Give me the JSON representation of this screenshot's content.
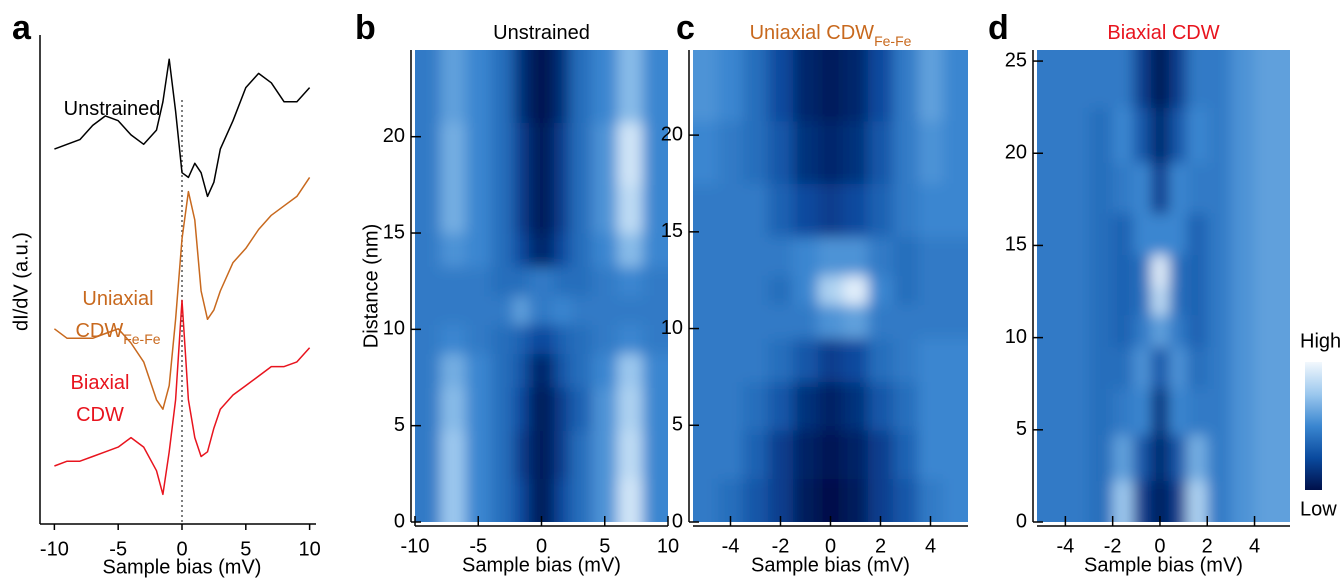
{
  "chart_data": [
    {
      "type": "line",
      "panel": "a",
      "xlabel": "Sample bias (mV)",
      "ylabel": "dI/dV (a.u.)",
      "xlim": [
        -10.5,
        10.5
      ],
      "xticks": [
        -10,
        -5,
        0,
        5,
        10
      ],
      "ylim": [
        0,
        10
      ],
      "ref_line_x": 0,
      "x": [
        -10,
        -9,
        -8,
        -7,
        -6,
        -5,
        -4,
        -3,
        -2,
        -1.5,
        -1,
        -0.5,
        0,
        0.5,
        1,
        1.5,
        2,
        2.5,
        3,
        4,
        5,
        6,
        7,
        8,
        9,
        10
      ],
      "series": [
        {
          "label_lines": [
            "Unstrained"
          ],
          "color": "#000000",
          "values": [
            7.8,
            7.9,
            8.0,
            8.3,
            8.5,
            8.4,
            8.1,
            7.9,
            8.2,
            8.8,
            9.7,
            8.6,
            7.3,
            7.2,
            7.5,
            7.3,
            6.8,
            7.1,
            7.8,
            8.4,
            9.1,
            9.4,
            9.2,
            8.8,
            8.8,
            9.1
          ]
        },
        {
          "label_lines": [
            "Uniaxial",
            "CDW"
          ],
          "label_sub": "Fe-Fe",
          "color": "#c8691e",
          "values": [
            4.0,
            3.8,
            3.8,
            3.8,
            3.9,
            4.0,
            3.7,
            3.3,
            2.5,
            2.3,
            2.8,
            4.2,
            5.9,
            6.9,
            6.3,
            4.8,
            4.2,
            4.4,
            4.8,
            5.4,
            5.7,
            6.1,
            6.4,
            6.6,
            6.8,
            7.2
          ]
        },
        {
          "label_lines": [
            "Biaxial",
            "CDW"
          ],
          "color": "#e8141e",
          "values": [
            1.1,
            1.2,
            1.2,
            1.3,
            1.4,
            1.5,
            1.7,
            1.5,
            1.0,
            0.5,
            1.4,
            2.5,
            4.6,
            2.5,
            1.7,
            1.3,
            1.4,
            1.9,
            2.3,
            2.6,
            2.8,
            3.0,
            3.2,
            3.2,
            3.3,
            3.6
          ]
        }
      ]
    },
    {
      "type": "heatmap",
      "panel": "b",
      "title": "Unstrained",
      "title_color": "#000000",
      "xlabel": "Sample bias (mV)",
      "ylabel": "Distance (nm)",
      "xlim": [
        -10,
        10
      ],
      "xticks": [
        -10,
        -5,
        0,
        5,
        10
      ],
      "ylim": [
        0,
        24.5
      ],
      "yticks": [
        0,
        5,
        10,
        15,
        20
      ],
      "zlim": [
        0,
        1
      ],
      "x": [
        -9,
        -7,
        -5,
        -3,
        -1.5,
        -0.5,
        0.5,
        1.5,
        3,
        5,
        7,
        9
      ],
      "y": [
        1,
        3.5,
        6,
        8,
        9.5,
        11,
        12.5,
        14,
        16,
        19,
        22.5
      ],
      "z": [
        [
          0.45,
          0.75,
          0.5,
          0.4,
          0.25,
          0.05,
          0.05,
          0.25,
          0.4,
          0.55,
          0.9,
          0.5
        ],
        [
          0.45,
          0.75,
          0.5,
          0.4,
          0.2,
          0.05,
          0.05,
          0.2,
          0.4,
          0.55,
          0.85,
          0.5
        ],
        [
          0.45,
          0.7,
          0.5,
          0.4,
          0.25,
          0.05,
          0.05,
          0.2,
          0.35,
          0.55,
          0.8,
          0.5
        ],
        [
          0.45,
          0.65,
          0.5,
          0.4,
          0.3,
          0.1,
          0.1,
          0.3,
          0.4,
          0.5,
          0.75,
          0.5
        ],
        [
          0.45,
          0.5,
          0.45,
          0.4,
          0.35,
          0.25,
          0.25,
          0.35,
          0.4,
          0.45,
          0.5,
          0.45
        ],
        [
          0.45,
          0.45,
          0.45,
          0.45,
          0.6,
          0.45,
          0.45,
          0.5,
          0.45,
          0.45,
          0.45,
          0.45
        ],
        [
          0.45,
          0.45,
          0.45,
          0.4,
          0.4,
          0.45,
          0.45,
          0.4,
          0.4,
          0.45,
          0.5,
          0.45
        ],
        [
          0.45,
          0.55,
          0.5,
          0.4,
          0.25,
          0.1,
          0.1,
          0.25,
          0.4,
          0.5,
          0.7,
          0.5
        ],
        [
          0.45,
          0.65,
          0.5,
          0.4,
          0.2,
          0.05,
          0.05,
          0.2,
          0.4,
          0.55,
          0.85,
          0.5
        ],
        [
          0.45,
          0.65,
          0.5,
          0.4,
          0.2,
          0.05,
          0.05,
          0.2,
          0.4,
          0.55,
          0.9,
          0.5
        ],
        [
          0.45,
          0.6,
          0.5,
          0.4,
          0.15,
          0.02,
          0.02,
          0.15,
          0.4,
          0.5,
          0.7,
          0.5
        ]
      ]
    },
    {
      "type": "heatmap",
      "panel": "c",
      "title": "Uniaxial CDW",
      "title_sub": "Fe-Fe",
      "title_color": "#c8691e",
      "xlabel": "Sample bias (mV)",
      "xlim": [
        -5.5,
        5.5
      ],
      "xticks": [
        -4,
        -2,
        0,
        2,
        4
      ],
      "ylim": [
        0,
        24.4
      ],
      "yticks": [
        0,
        5,
        10,
        15,
        20
      ],
      "zlim": [
        0,
        1
      ],
      "x": [
        -5,
        -4,
        -3,
        -2,
        -1,
        0,
        1,
        2,
        3,
        4,
        5
      ],
      "y": [
        1,
        3.5,
        6,
        8.5,
        10.5,
        12,
        13.5,
        16,
        19,
        22.5
      ],
      "z": [
        [
          0.45,
          0.4,
          0.3,
          0.2,
          0.05,
          0.0,
          0.05,
          0.2,
          0.3,
          0.45,
          0.5
        ],
        [
          0.45,
          0.45,
          0.35,
          0.2,
          0.08,
          0.03,
          0.08,
          0.2,
          0.35,
          0.5,
          0.5
        ],
        [
          0.45,
          0.45,
          0.4,
          0.3,
          0.15,
          0.08,
          0.15,
          0.3,
          0.4,
          0.5,
          0.5
        ],
        [
          0.45,
          0.45,
          0.45,
          0.4,
          0.3,
          0.2,
          0.25,
          0.4,
          0.45,
          0.5,
          0.5
        ],
        [
          0.45,
          0.45,
          0.45,
          0.45,
          0.45,
          0.55,
          0.6,
          0.45,
          0.45,
          0.45,
          0.45
        ],
        [
          0.45,
          0.45,
          0.45,
          0.4,
          0.5,
          0.8,
          0.95,
          0.5,
          0.4,
          0.45,
          0.45
        ],
        [
          0.45,
          0.45,
          0.45,
          0.45,
          0.5,
          0.55,
          0.55,
          0.45,
          0.4,
          0.45,
          0.45
        ],
        [
          0.45,
          0.45,
          0.45,
          0.35,
          0.25,
          0.2,
          0.25,
          0.35,
          0.45,
          0.5,
          0.5
        ],
        [
          0.5,
          0.45,
          0.4,
          0.3,
          0.15,
          0.1,
          0.15,
          0.3,
          0.45,
          0.55,
          0.5
        ],
        [
          0.55,
          0.5,
          0.4,
          0.25,
          0.1,
          0.05,
          0.1,
          0.25,
          0.45,
          0.6,
          0.5
        ]
      ]
    },
    {
      "type": "heatmap",
      "panel": "d",
      "title": "Biaxial CDW",
      "title_color": "#e8141e",
      "xlabel": "Sample bias (mV)",
      "xlim": [
        -5.2,
        5.5
      ],
      "xticks": [
        -4,
        -2,
        0,
        2,
        4
      ],
      "ylim": [
        0,
        25.6
      ],
      "yticks": [
        0,
        5,
        10,
        15,
        20,
        25
      ],
      "zlim": [
        0,
        1
      ],
      "x": [
        -4.5,
        -3.5,
        -2.5,
        -1.5,
        -0.75,
        0,
        0.75,
        1.5,
        2.5,
        3.5,
        4.5
      ],
      "y": [
        1,
        3.5,
        6,
        8.5,
        10.5,
        12,
        13.5,
        15.5,
        18,
        21,
        24
      ],
      "z": [
        [
          0.45,
          0.45,
          0.4,
          0.75,
          0.2,
          0.05,
          0.2,
          0.8,
          0.45,
          0.55,
          0.6
        ],
        [
          0.45,
          0.45,
          0.4,
          0.6,
          0.3,
          0.1,
          0.3,
          0.65,
          0.45,
          0.55,
          0.6
        ],
        [
          0.45,
          0.45,
          0.4,
          0.45,
          0.5,
          0.15,
          0.5,
          0.45,
          0.45,
          0.55,
          0.6
        ],
        [
          0.45,
          0.45,
          0.4,
          0.4,
          0.55,
          0.3,
          0.55,
          0.4,
          0.45,
          0.55,
          0.6
        ],
        [
          0.45,
          0.45,
          0.4,
          0.35,
          0.45,
          0.6,
          0.45,
          0.35,
          0.45,
          0.55,
          0.6
        ],
        [
          0.45,
          0.45,
          0.4,
          0.35,
          0.4,
          0.85,
          0.4,
          0.35,
          0.45,
          0.55,
          0.6
        ],
        [
          0.45,
          0.45,
          0.4,
          0.35,
          0.4,
          0.95,
          0.4,
          0.35,
          0.45,
          0.55,
          0.6
        ],
        [
          0.45,
          0.45,
          0.4,
          0.35,
          0.5,
          0.5,
          0.5,
          0.35,
          0.45,
          0.55,
          0.6
        ],
        [
          0.45,
          0.45,
          0.4,
          0.45,
          0.5,
          0.2,
          0.5,
          0.45,
          0.45,
          0.55,
          0.6
        ],
        [
          0.45,
          0.45,
          0.4,
          0.5,
          0.3,
          0.1,
          0.3,
          0.5,
          0.45,
          0.55,
          0.6
        ],
        [
          0.45,
          0.45,
          0.45,
          0.45,
          0.2,
          0.02,
          0.2,
          0.45,
          0.45,
          0.55,
          0.6
        ]
      ],
      "colorbar": {
        "high": "High",
        "low": "Low",
        "colors": [
          "#00104a",
          "#0a4a9e",
          "#3a86d0",
          "#9cc8ee",
          "#f2f8fd"
        ]
      }
    }
  ]
}
